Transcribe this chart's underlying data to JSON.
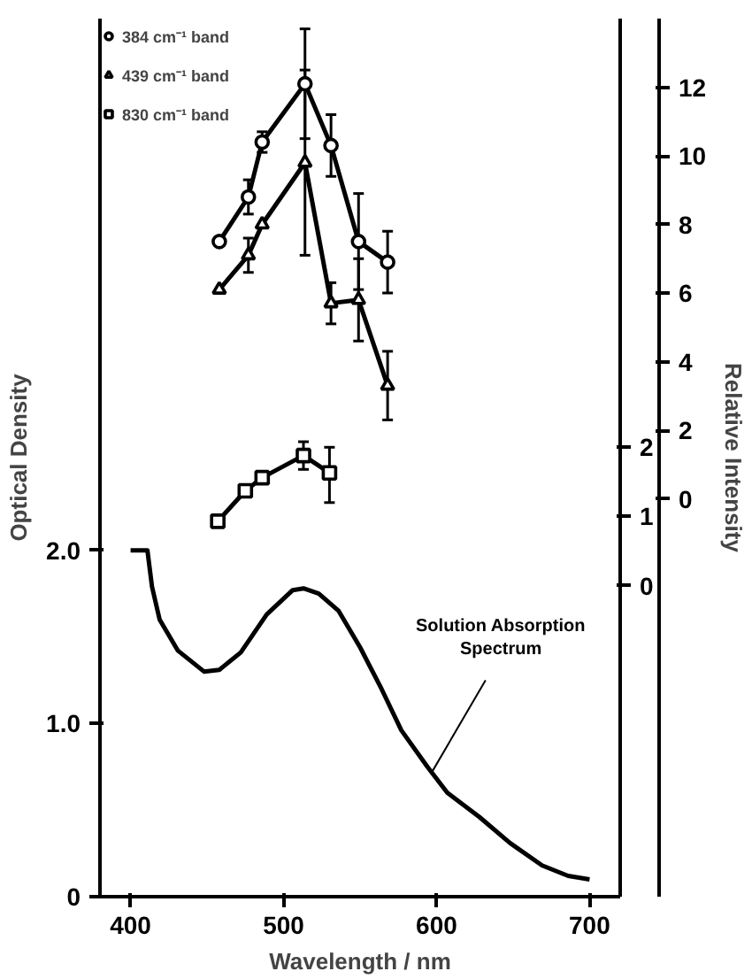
{
  "chart_data": {
    "type": "line",
    "xlabel": "Wavelength / nm",
    "ylabel": "Optical Density",
    "y2label": "Relative Intensity",
    "xlim": [
      380,
      720
    ],
    "xticks": [
      400,
      500,
      600,
      700
    ],
    "ylim": [
      0,
      5.07
    ],
    "yticks": [
      0,
      {
        "value": 1,
        "label": "1.0"
      },
      {
        "value": 2,
        "label": "2.0"
      }
    ],
    "y2lim": [
      -11.6,
      14.0
    ],
    "y2ticks": [
      0,
      2,
      4,
      6,
      8,
      10,
      12
    ],
    "y3lim": [
      -4.5,
      8.2
    ],
    "y3ticks": [
      0,
      1,
      2
    ],
    "grid": false,
    "legend": "top left",
    "annotations": [
      {
        "text": "Solution Absorption Spectrum",
        "x": 597,
        "y": 0.72
      }
    ],
    "series": [
      {
        "name": "384 cm⁻¹ band",
        "color": "#000000",
        "axis": "y2",
        "marker": "circle",
        "x": [
          458,
          477,
          486,
          514,
          531,
          549,
          568
        ],
        "values": [
          7.5,
          8.8,
          10.4,
          12.1,
          10.3,
          7.5,
          6.9
        ],
        "errors": [
          null,
          0.5,
          0.3,
          1.6,
          0.9,
          1.4,
          0.9
        ]
      },
      {
        "name": "439 cm⁻¹ band",
        "color": "#000000",
        "axis": "y2",
        "marker": "triangle",
        "x": [
          458,
          477,
          486,
          514,
          531,
          549,
          568
        ],
        "values": [
          6.1,
          7.1,
          8.0,
          9.8,
          5.7,
          5.8,
          3.3
        ],
        "errors": [
          null,
          0.5,
          null,
          2.7,
          0.6,
          1.2,
          1.0
        ]
      },
      {
        "name": "830 cm⁻¹ band",
        "color": "#000000",
        "axis": "y3",
        "marker": "square",
        "x": [
          457,
          475,
          486,
          513,
          530
        ],
        "values": [
          0.93,
          1.37,
          1.56,
          1.88,
          1.63
        ],
        "errors": [
          null,
          null,
          null,
          0.2,
          [
            1.2,
            2.0
          ]
        ]
      },
      {
        "color": "#000000",
        "marker": "none",
        "x": [
          400,
          411,
          414,
          419,
          431,
          448,
          458,
          472,
          489,
          506,
          513,
          523,
          536,
          550,
          564,
          577,
          594,
          607,
          628,
          648,
          669,
          686,
          700
        ],
        "values": [
          2.0,
          2.0,
          1.79,
          1.6,
          1.42,
          1.3,
          1.31,
          1.41,
          1.63,
          1.77,
          1.78,
          1.75,
          1.65,
          1.44,
          1.2,
          0.96,
          0.75,
          0.6,
          0.46,
          0.31,
          0.18,
          0.12,
          0.1
        ]
      }
    ]
  }
}
